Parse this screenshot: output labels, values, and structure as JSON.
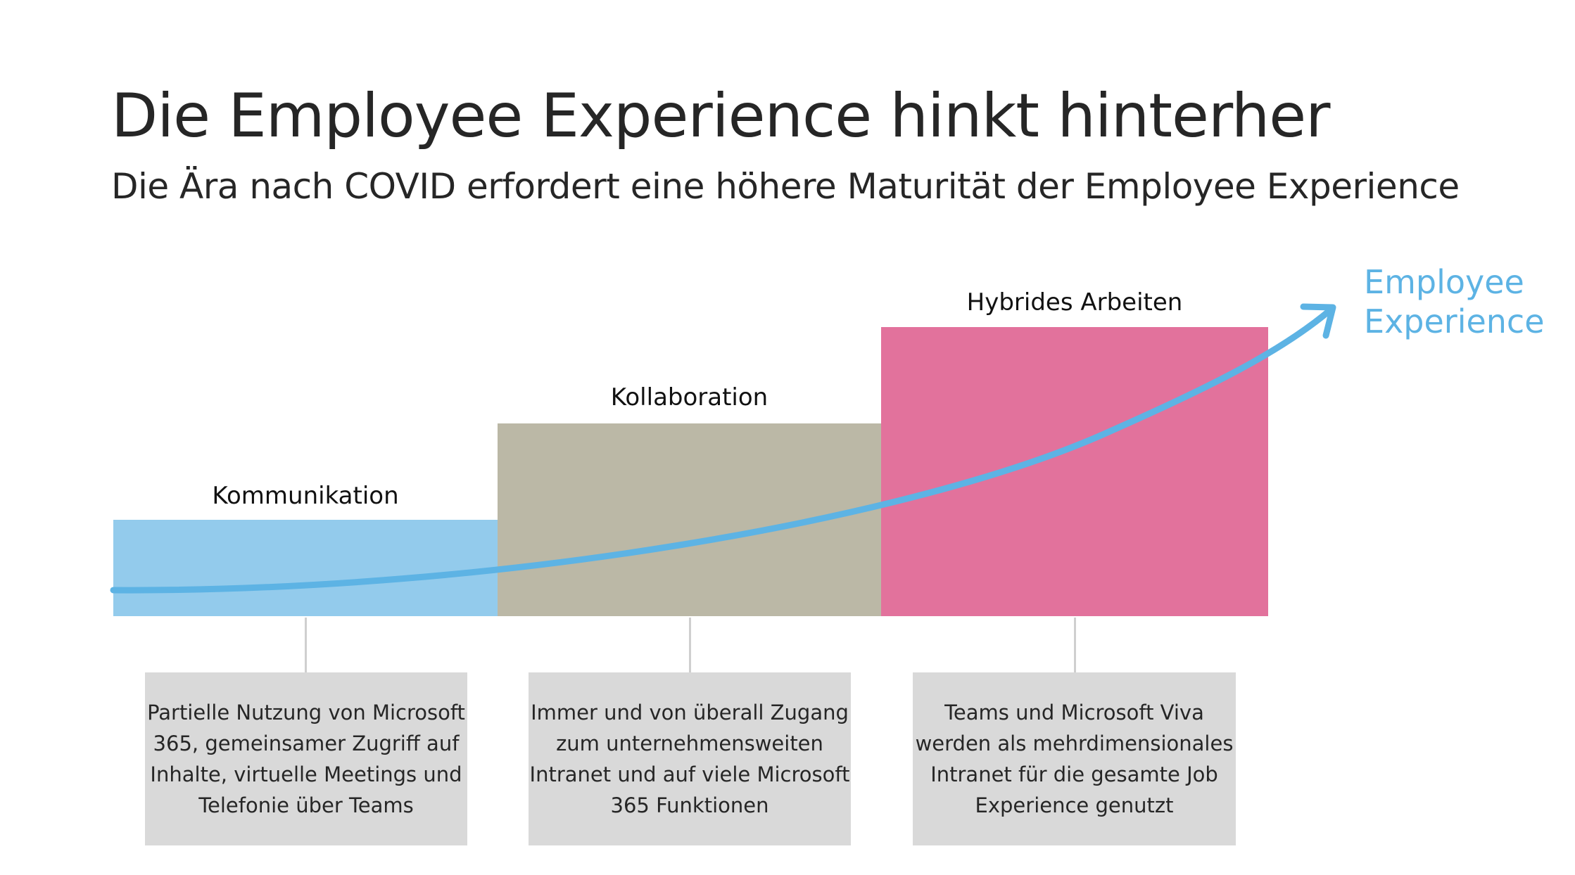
{
  "title": "Die Employee Experience hinkt hinterher",
  "subtitle": "Die Ära nach COVID erfordert eine höhere Maturität der Employee Experience",
  "stages": [
    {
      "label": "Kommunikation",
      "color": "#93cbec",
      "description": "Partielle Nutzung von Microsoft\n365, gemeinsamer Zugriff auf\nInhalte, virtuelle Meetings und\nTelefonie über Teams"
    },
    {
      "label": "Kollaboration",
      "color": "#bbb8a6",
      "description": "Immer und von überall Zugang\nzum  unternehmensweiten\nIntranet und auf viele Microsoft\n365 Funktionen"
    },
    {
      "label": "Hybrides Arbeiten",
      "color": "#e2729c",
      "description": "Teams und Microsoft Viva\nwerden als mehrdimensionales\nIntranet für die gesamte Job\nExperience genutzt"
    }
  ],
  "curve": {
    "label": "Employee\nExperience",
    "color": "#5db3e4"
  },
  "colors": {
    "description_box": "#d9d9d9",
    "connector": "#cfcfcf",
    "text": "#262626"
  }
}
